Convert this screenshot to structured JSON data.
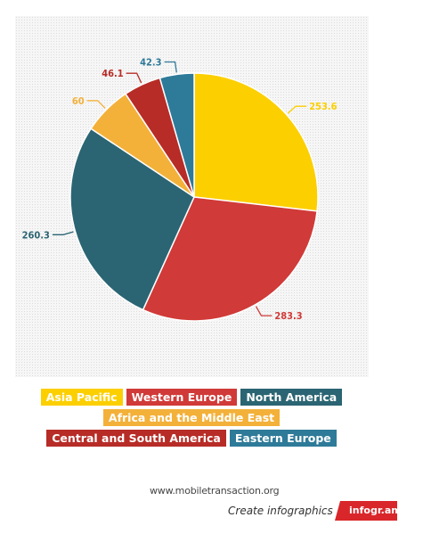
{
  "chart_data": {
    "type": "pie",
    "slices": [
      {
        "label": "Asia Pacific",
        "value": 253.6,
        "color": "#fccf00"
      },
      {
        "label": "Western Europe",
        "value": 283.3,
        "color": "#d03a38"
      },
      {
        "label": "North America",
        "value": 260.3,
        "color": "#2b6573"
      },
      {
        "label": "Africa and the Middle East",
        "value": 60,
        "color": "#f3b13a"
      },
      {
        "label": "Central and South America",
        "value": 46.1,
        "color": "#b72c27"
      },
      {
        "label": "Eastern Europe",
        "value": 42.3,
        "color": "#2e7a99"
      }
    ],
    "legend_rows": [
      [
        0,
        1,
        2
      ],
      [
        3
      ],
      [
        4,
        5
      ]
    ],
    "legend_position": "bottom"
  },
  "footer": {
    "source": "www.mobiletransaction.org",
    "create_text": "Create infographics",
    "brand": "infogr.am",
    "brand_color": "#d9262a"
  }
}
